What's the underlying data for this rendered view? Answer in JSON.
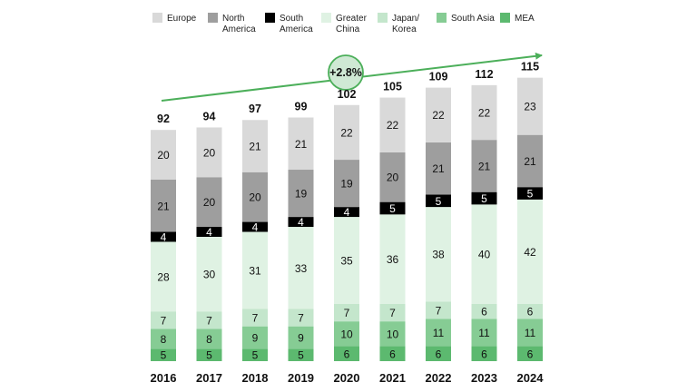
{
  "chart_data": {
    "type": "bar",
    "stacked": true,
    "categories": [
      "2016",
      "2017",
      "2018",
      "2019",
      "2020",
      "2021",
      "2022",
      "2023",
      "2024"
    ],
    "series": [
      {
        "name": "MEA",
        "color": "#5cb96f",
        "values": [
          5,
          5,
          5,
          5,
          6,
          6,
          6,
          6,
          6
        ]
      },
      {
        "name": "South Asia",
        "color": "#86cc94",
        "values": [
          8,
          8,
          9,
          9,
          10,
          10,
          11,
          11,
          11
        ]
      },
      {
        "name": "Japan/ Korea",
        "color": "#c4e6cc",
        "values": [
          7,
          7,
          7,
          7,
          7,
          7,
          7,
          6,
          6
        ]
      },
      {
        "name": "Greater China",
        "color": "#dff2e3",
        "values": [
          28,
          30,
          31,
          33,
          35,
          36,
          38,
          40,
          42
        ]
      },
      {
        "name": "South America",
        "color": "#000000",
        "values": [
          4,
          4,
          4,
          4,
          4,
          5,
          5,
          5,
          5
        ]
      },
      {
        "name": "North America",
        "color": "#9e9e9e",
        "values": [
          21,
          20,
          20,
          19,
          19,
          20,
          21,
          21,
          21
        ]
      },
      {
        "name": "Europe",
        "color": "#d9d9d9",
        "values": [
          20,
          20,
          21,
          21,
          22,
          22,
          22,
          22,
          23
        ]
      }
    ],
    "totals": [
      92,
      94,
      97,
      99,
      102,
      105,
      109,
      112,
      115
    ],
    "annotation": {
      "text": "+2.8%",
      "color": "#4caf5a"
    },
    "legend": {
      "placement": "top",
      "entries": [
        {
          "lines": [
            "Europe"
          ],
          "color": "#d9d9d9"
        },
        {
          "lines": [
            "North",
            "America"
          ],
          "color": "#9e9e9e"
        },
        {
          "lines": [
            "South",
            "America"
          ],
          "color": "#000000"
        },
        {
          "lines": [
            "Greater",
            "China"
          ],
          "color": "#dff2e3"
        },
        {
          "lines": [
            "Japan/",
            "Korea"
          ],
          "color": "#c4e6cc"
        },
        {
          "lines": [
            "South Asia"
          ],
          "color": "#86cc94"
        },
        {
          "lines": [
            "MEA"
          ],
          "color": "#5cb96f"
        }
      ]
    },
    "grid": false
  }
}
